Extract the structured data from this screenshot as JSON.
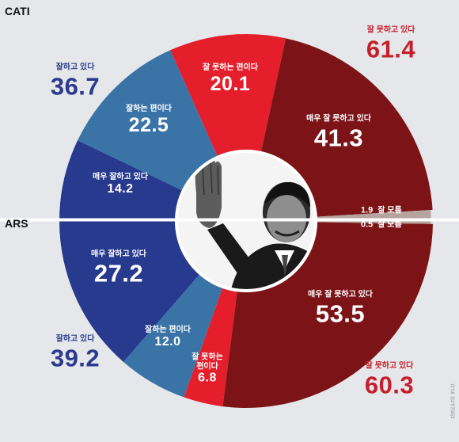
{
  "methods": {
    "top": "CATI",
    "bottom": "ARS"
  },
  "chart_data": [
    {
      "type": "pie",
      "method": "CATI",
      "series": [
        {
          "name": "매우 잘하고 있다",
          "value": 14.2
        },
        {
          "name": "잘하는 편이다",
          "value": 22.5
        },
        {
          "name": "잘 못하는 편이다",
          "value": 20.1
        },
        {
          "name": "매우 잘 못하고 있다",
          "value": 41.3
        },
        {
          "name": "잘 모름",
          "value": 1.9
        }
      ],
      "totals": [
        {
          "name": "잘하고 있다",
          "value": "36.7"
        },
        {
          "name": "잘 못하고 있다",
          "value": "61.4"
        }
      ]
    },
    {
      "type": "pie",
      "method": "ARS",
      "series": [
        {
          "name": "매우 잘하고 있다",
          "value": 27.2
        },
        {
          "name": "잘하는 편이다",
          "value": 12.0
        },
        {
          "name": "잘 못하는 편이다",
          "value": 6.8
        },
        {
          "name": "매우 잘 못하고 있다",
          "value": 53.5
        },
        {
          "name": "잘 모름",
          "value": 0.5
        }
      ],
      "totals": [
        {
          "name": "잘하고 있다",
          "value": "39.2"
        },
        {
          "name": "잘 못하고 있다",
          "value": "60.3"
        }
      ]
    }
  ],
  "labels": {
    "cati_strong_pos": {
      "name": "매우 잘하고 있다",
      "value": "14.2"
    },
    "cati_pos": {
      "name": "잘하는 편이다",
      "value": "22.5"
    },
    "cati_neg": {
      "name": "잘 못하는 편이다",
      "value": "20.1"
    },
    "cati_strong_neg": {
      "name": "매우 잘 못하고 있다",
      "value": "41.3"
    },
    "cati_total_pos": {
      "name": "잘하고 있다",
      "value": "36.7"
    },
    "cati_total_neg": {
      "name": "잘 못하고 있다",
      "value": "61.4"
    },
    "cati_dk": {
      "name": "잘 모름",
      "value": "1.9"
    },
    "ars_strong_pos": {
      "name": "매우 잘하고 있다",
      "value": "27.2"
    },
    "ars_pos": {
      "name": "잘하는 편이다",
      "value": "12.0"
    },
    "ars_neg_line1": "잘 못하는",
    "ars_neg_line2": "편이다",
    "ars_neg_value": "6.8",
    "ars_strong_neg": {
      "name": "매우 잘 못하고 있다",
      "value": "53.5"
    },
    "ars_total_pos": {
      "name": "잘하고 있다",
      "value": "39.2"
    },
    "ars_total_neg": {
      "name": "잘 못하고 있다",
      "value": "60.3"
    },
    "ars_dk": {
      "name": "잘 모름",
      "value": "0.5"
    }
  },
  "colors": {
    "strong_pos": "#283a8e",
    "pos": "#3a74a7",
    "neg": "#e41e2b",
    "strong_neg": "#7c1417",
    "dk": "#b6a39d",
    "pos_text": "#2b3a8c",
    "neg_text": "#c4202b"
  },
  "photo": {
    "icon": "waving-person-photo"
  },
  "credit": "자료 한국갤럽"
}
